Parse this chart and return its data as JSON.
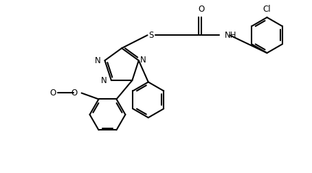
{
  "line_color": "#000000",
  "bg_color": "#ffffff",
  "line_width": 1.5,
  "font_size": 8.5,
  "figsize": [
    4.54,
    2.52
  ],
  "dpi": 100,
  "xlim": [
    0,
    9.0
  ],
  "ylim": [
    0,
    5.0
  ]
}
